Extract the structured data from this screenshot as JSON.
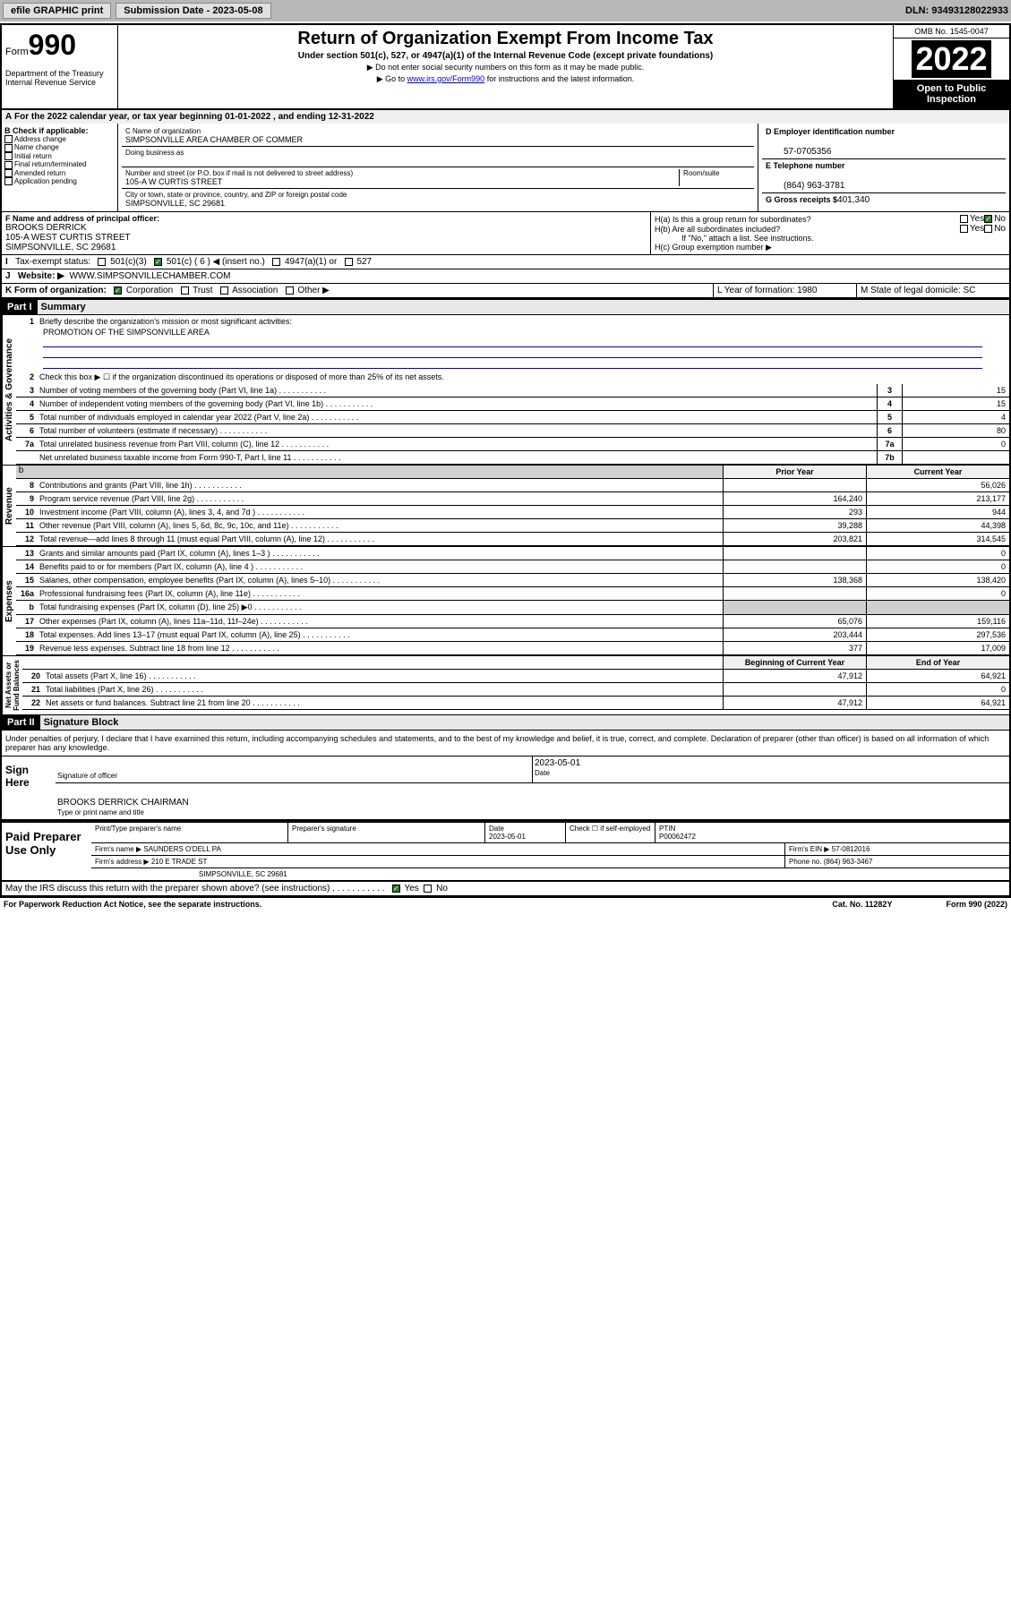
{
  "toolbar": {
    "efile": "efile GRAPHIC print",
    "sub_label": "Submission Date - 2023-05-08",
    "dln": "DLN: 93493128022933"
  },
  "header": {
    "form": "Form",
    "num": "990",
    "dept": "Department of the Treasury\nInternal Revenue Service",
    "title": "Return of Organization Exempt From Income Tax",
    "subtitle": "Under section 501(c), 527, or 4947(a)(1) of the Internal Revenue Code (except private foundations)",
    "note1": "▶ Do not enter social security numbers on this form as it may be made public.",
    "note2_pre": "▶ Go to ",
    "note2_link": "www.irs.gov/Form990",
    "note2_post": " for instructions and the latest information.",
    "omb": "OMB No. 1545-0047",
    "year": "2022",
    "openpub": "Open to Public Inspection"
  },
  "lineA": "For the 2022 calendar year, or tax year beginning 01-01-2022    , and ending 12-31-2022",
  "sectionB": {
    "label": "B Check if applicable:",
    "opts": [
      "Address change",
      "Name change",
      "Initial return",
      "Final return/terminated",
      "Amended return",
      "Application pending"
    ]
  },
  "nameBlock": {
    "cLabel": "C Name of organization",
    "cVal": "SIMPSONVILLE AREA CHAMBER OF COMMER",
    "dbaLabel": "Doing business as",
    "addrLabel": "Number and street (or P.O. box if mail is not delivered to street address)",
    "roomLabel": "Room/suite",
    "addrVal": "105-A W CURTIS STREET",
    "cityLabel": "City or town, state or province, country, and ZIP or foreign postal code",
    "cityVal": "SIMPSONVILLE, SC  29681"
  },
  "rightBlock": {
    "dLabel": "D Employer identification number",
    "dVal": "57-0705356",
    "eLabel": "E Telephone number",
    "eVal": "(864) 963-3781",
    "gLabel": "G Gross receipts $",
    "gVal": "401,340"
  },
  "fBlock": {
    "label": "F Name and address of principal officer:",
    "name": "BROOKS DERRICK",
    "addr1": "105-A WEST CURTIS STREET",
    "addr2": "SIMPSONVILLE, SC  29681"
  },
  "hBlock": {
    "haLabel": "H(a)  Is this a group return for subordinates?",
    "hbLabel": "H(b)  Are all subordinates included?",
    "hbNote": "If \"No,\" attach a list. See instructions.",
    "hcLabel": "H(c)  Group exemption number ▶"
  },
  "taxExempt": {
    "label": "Tax-exempt status:",
    "o1": "501(c)(3)",
    "o2": "501(c) ( 6 ) ◀ (insert no.)",
    "o3": "4947(a)(1) or",
    "o4": "527"
  },
  "website": {
    "label": "Website: ▶",
    "val": "WWW.SIMPSONVILLECHAMBER.COM"
  },
  "kLine": {
    "label": "K Form of organization:",
    "o1": "Corporation",
    "o2": "Trust",
    "o3": "Association",
    "o4": "Other ▶"
  },
  "lLine": {
    "label": "L Year of formation: 1980"
  },
  "mLine": {
    "label": "M State of legal domicile: SC"
  },
  "part1": {
    "hdr": "Part I",
    "title": "Summary"
  },
  "summary": {
    "line1": "Briefly describe the organization's mission or most significant activities:",
    "mission": "PROMOTION OF THE SIMPSONVILLE AREA",
    "line2": "Check this box ▶ ☐  if the organization discontinued its operations or disposed of more than 25% of its net assets.",
    "rows": [
      {
        "n": "3",
        "t": "Number of voting members of the governing body (Part VI, line 1a)",
        "bn": "3",
        "bv": "15"
      },
      {
        "n": "4",
        "t": "Number of independent voting members of the governing body (Part VI, line 1b)",
        "bn": "4",
        "bv": "15"
      },
      {
        "n": "5",
        "t": "Total number of individuals employed in calendar year 2022 (Part V, line 2a)",
        "bn": "5",
        "bv": "4"
      },
      {
        "n": "6",
        "t": "Total number of volunteers (estimate if necessary)",
        "bn": "6",
        "bv": "80"
      },
      {
        "n": "7a",
        "t": "Total unrelated business revenue from Part VIII, column (C), line 12",
        "bn": "7a",
        "bv": "0"
      },
      {
        "n": "",
        "t": "Net unrelated business taxable income from Form 990-T, Part I, line 11",
        "bn": "7b",
        "bv": ""
      }
    ],
    "colHdr1": "Prior Year",
    "colHdr2": "Current Year",
    "revenue": [
      {
        "n": "8",
        "t": "Contributions and grants (Part VIII, line 1h)",
        "c1": "",
        "c2": "56,026"
      },
      {
        "n": "9",
        "t": "Program service revenue (Part VIII, line 2g)",
        "c1": "164,240",
        "c2": "213,177"
      },
      {
        "n": "10",
        "t": "Investment income (Part VIII, column (A), lines 3, 4, and 7d )",
        "c1": "293",
        "c2": "944"
      },
      {
        "n": "11",
        "t": "Other revenue (Part VIII, column (A), lines 5, 6d, 8c, 9c, 10c, and 11e)",
        "c1": "39,288",
        "c2": "44,398"
      },
      {
        "n": "12",
        "t": "Total revenue—add lines 8 through 11 (must equal Part VIII, column (A), line 12)",
        "c1": "203,821",
        "c2": "314,545"
      }
    ],
    "expenses": [
      {
        "n": "13",
        "t": "Grants and similar amounts paid (Part IX, column (A), lines 1–3 )",
        "c1": "",
        "c2": "0"
      },
      {
        "n": "14",
        "t": "Benefits paid to or for members (Part IX, column (A), line 4 )",
        "c1": "",
        "c2": "0"
      },
      {
        "n": "15",
        "t": "Salaries, other compensation, employee benefits (Part IX, column (A), lines 5–10)",
        "c1": "138,368",
        "c2": "138,420"
      },
      {
        "n": "16a",
        "t": "Professional fundraising fees (Part IX, column (A), line 11e)",
        "c1": "",
        "c2": "0"
      },
      {
        "n": "b",
        "t": "Total fundraising expenses (Part IX, column (D), line 25) ▶0",
        "c1": "—",
        "c2": "—"
      },
      {
        "n": "17",
        "t": "Other expenses (Part IX, column (A), lines 11a–11d, 11f–24e)",
        "c1": "65,076",
        "c2": "159,116"
      },
      {
        "n": "18",
        "t": "Total expenses. Add lines 13–17 (must equal Part IX, column (A), line 25)",
        "c1": "203,444",
        "c2": "297,536"
      },
      {
        "n": "19",
        "t": "Revenue less expenses. Subtract line 18 from line 12",
        "c1": "377",
        "c2": "17,009"
      }
    ],
    "naHdr1": "Beginning of Current Year",
    "naHdr2": "End of Year",
    "netassets": [
      {
        "n": "20",
        "t": "Total assets (Part X, line 16)",
        "c1": "47,912",
        "c2": "64,921"
      },
      {
        "n": "21",
        "t": "Total liabilities (Part X, line 26)",
        "c1": "",
        "c2": "0"
      },
      {
        "n": "22",
        "t": "Net assets or fund balances. Subtract line 21 from line 20",
        "c1": "47,912",
        "c2": "64,921"
      }
    ]
  },
  "vertLabels": {
    "ag": "Activities & Governance",
    "rev": "Revenue",
    "exp": "Expenses",
    "na": "Net Assets or\nFund Balances"
  },
  "part2": {
    "hdr": "Part II",
    "title": "Signature Block"
  },
  "sigDecl": "Under penalties of perjury, I declare that I have examined this return, including accompanying schedules and statements, and to the best of my knowledge and belief, it is true, correct, and complete. Declaration of preparer (other than officer) is based on all information of which preparer has any knowledge.",
  "sign": {
    "label": "Sign Here",
    "sigOf": "Signature of officer",
    "date": "2023-05-01",
    "dateLbl": "Date",
    "name": "BROOKS DERRICK  CHAIRMAN",
    "nameLbl": "Type or print name and title"
  },
  "preparer": {
    "label": "Paid Preparer Use Only",
    "h1": "Print/Type preparer's name",
    "h2": "Preparer's signature",
    "h3": "Date",
    "h3v": "2023-05-01",
    "h4": "Check ☐ if self-employed",
    "h5": "PTIN",
    "h5v": "P00062472",
    "firmLbl": "Firm's name    ▶",
    "firmVal": "SAUNDERS O'DELL PA",
    "einLbl": "Firm's EIN ▶",
    "einVal": "57-0812016",
    "addrLbl": "Firm's address ▶",
    "addrVal": "210 E TRADE ST",
    "addrVal2": "SIMPSONVILLE, SC  29681",
    "phoneLbl": "Phone no.",
    "phoneVal": "(864) 963-3467"
  },
  "mayIRS": "May the IRS discuss this return with the preparer shown above? (see instructions)",
  "footer": {
    "pra": "For Paperwork Reduction Act Notice, see the separate instructions.",
    "cat": "Cat. No. 11282Y",
    "form": "Form 990 (2022)"
  }
}
